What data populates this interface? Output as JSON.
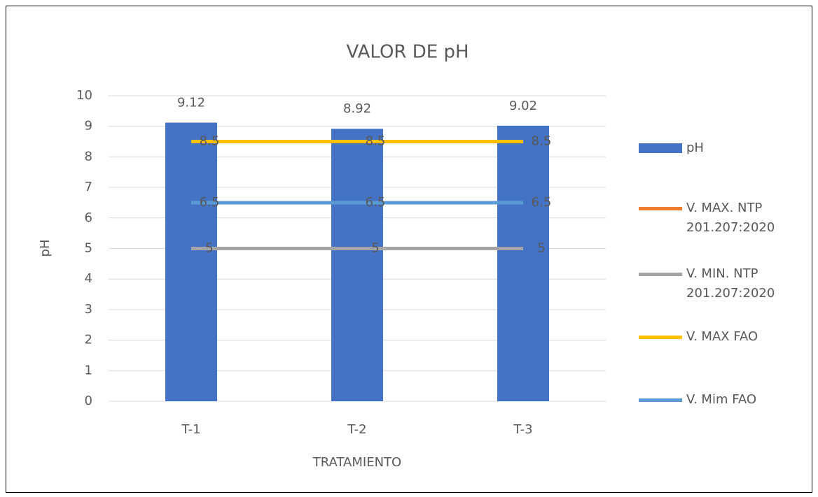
{
  "chart_data": {
    "type": "bar",
    "title": "VALOR DE pH",
    "x_label": "TRATAMIENTO",
    "y_label": "pH",
    "categories": [
      "T-1",
      "T-2",
      "T-3"
    ],
    "series": [
      {
        "name": "pH",
        "type": "bar",
        "color": "#4472c4",
        "values": [
          9.12,
          8.92,
          9.02
        ]
      },
      {
        "name": "V. MAX. NTP 201.207:2020",
        "type": "line",
        "color": "#ed7d31",
        "values": [
          8.5,
          8.5,
          8.5
        ]
      },
      {
        "name": "V. MIN. NTP 201.207:2020",
        "type": "line",
        "color": "#a5a5a5",
        "values": [
          5,
          5,
          5
        ]
      },
      {
        "name": "V. MAX FAO",
        "type": "line",
        "color": "#ffc000",
        "values": [
          8.5,
          8.5,
          8.5
        ]
      },
      {
        "name": "V. Mim FAO",
        "type": "line",
        "color": "#5b9bd5",
        "values": [
          6.5,
          6.5,
          6.5
        ]
      }
    ],
    "ylim": [
      0,
      10
    ],
    "yticks": [
      0,
      1,
      2,
      3,
      4,
      5,
      6,
      7,
      8,
      9,
      10
    ],
    "grid": true,
    "legend": "right"
  }
}
